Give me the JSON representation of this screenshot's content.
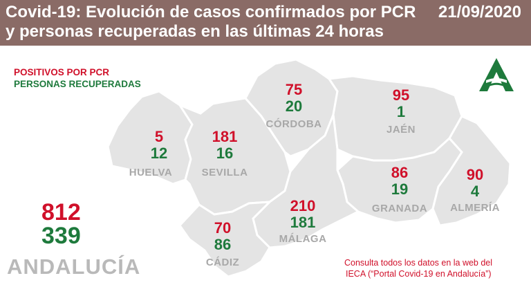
{
  "header": {
    "title": "Covid-19: Evolución de casos confirmados por PCR y personas recuperadas en las últimas 24 horas",
    "date": "21/09/2020"
  },
  "legend": {
    "positivos": "POSITIVOS POR PCR",
    "recuperadas": "PERSONAS RECUPERADAS"
  },
  "colors": {
    "header": "#8a6b66",
    "positivos": "#d0102a",
    "recuperadas": "#1e7a3c",
    "map": "#e4e4e4",
    "logo": "#1e7a3c"
  },
  "provinces": {
    "huelva": {
      "name": "HUELVA",
      "positivos": "5",
      "recuperadas": "12"
    },
    "sevilla": {
      "name": "SEVILLA",
      "positivos": "181",
      "recuperadas": "16"
    },
    "cordoba": {
      "name": "CÓRDOBA",
      "positivos": "75",
      "recuperadas": "20"
    },
    "jaen": {
      "name": "JAÉN",
      "positivos": "95",
      "recuperadas": "1"
    },
    "granada": {
      "name": "GRANADA",
      "positivos": "86",
      "recuperadas": "19"
    },
    "almeria": {
      "name": "ALMERÍA",
      "positivos": "90",
      "recuperadas": "4"
    },
    "malaga": {
      "name": "MÁLAGA",
      "positivos": "210",
      "recuperadas": "181"
    },
    "cadiz": {
      "name": "CÁDIZ",
      "positivos": "70",
      "recuperadas": "86"
    }
  },
  "total": {
    "name": "ANDALUCÍA",
    "positivos": "812",
    "recuperadas": "339"
  },
  "note": {
    "line1": "Consulta todos los datos en la web del",
    "line2": "IECA (“Portal Covid-19 en Andalucía”)"
  },
  "icons": {
    "logo": "junta-de-andalucia-logo-icon"
  }
}
